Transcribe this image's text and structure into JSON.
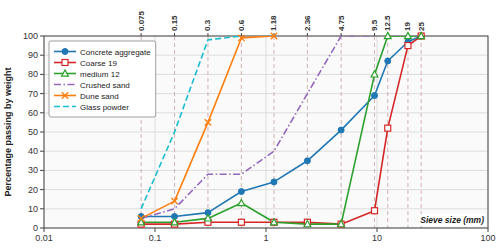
{
  "chart_data": {
    "type": "line",
    "y_label": "Percentage passing by weight",
    "x_label": "Sieve size (mm)",
    "log": "x",
    "xlim": [
      0.01,
      100
    ],
    "xticks": [
      0.01,
      0.1,
      1,
      10,
      100
    ],
    "x2lim": [
      0.01,
      100
    ],
    "x2ticks": [
      0.075,
      0.15,
      0.3,
      0.6,
      1.18,
      2.36,
      4.75,
      9.5,
      12.5,
      19,
      25
    ],
    "ylim": [
      0,
      100
    ],
    "yticks": [
      0,
      10,
      20,
      30,
      40,
      50,
      60,
      70,
      80,
      90,
      100
    ],
    "grid": true,
    "legend": "top-left",
    "series": [
      {
        "name": "Concrete aggregate",
        "x": [
          0.075,
          0.15,
          0.3,
          0.6,
          1.18,
          2.36,
          4.75,
          9.5,
          12.5,
          19,
          25
        ],
        "values": [
          6,
          6,
          8,
          19,
          24,
          35,
          51,
          69,
          87,
          97,
          100
        ],
        "marker": "circle",
        "line_style": "solid"
      },
      {
        "name": "Coarse 19",
        "x": [
          0.075,
          0.15,
          0.3,
          0.6,
          1.18,
          2.36,
          4.75,
          9.5,
          12.5,
          19,
          25
        ],
        "values": [
          2,
          2,
          3,
          3,
          3,
          3,
          2,
          9,
          52,
          95,
          100
        ],
        "marker": "square-open",
        "line_style": "solid"
      },
      {
        "name": "medium 12",
        "x": [
          0.075,
          0.15,
          0.3,
          0.6,
          1.18,
          2.36,
          4.75,
          9.5,
          12.5,
          19,
          25
        ],
        "values": [
          3,
          3,
          5,
          13,
          3,
          2,
          2,
          80,
          100,
          100,
          100
        ],
        "marker": "triangle-open",
        "line_style": "solid"
      },
      {
        "name": "Crushed sand",
        "x": [
          0.075,
          0.15,
          0.3,
          0.6,
          1.18,
          2.36,
          4.75,
          9.5
        ],
        "values": [
          5,
          10,
          28,
          28,
          40,
          70,
          100,
          100
        ],
        "line_style": "dashdot"
      },
      {
        "name": "Dune sand",
        "x": [
          0.075,
          0.15,
          0.3,
          0.6,
          1.18
        ],
        "values": [
          5,
          14,
          55,
          99,
          100
        ],
        "marker": "x",
        "line_style": "solid"
      },
      {
        "name": "Glass powder",
        "x": [
          0.075,
          0.15,
          0.3,
          0.6
        ],
        "values": [
          10,
          50,
          98,
          100
        ],
        "line_style": "dashed"
      }
    ]
  }
}
